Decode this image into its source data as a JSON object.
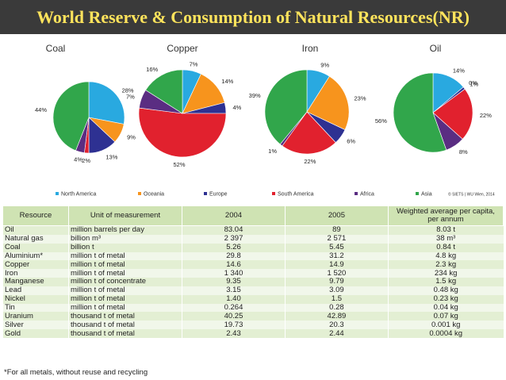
{
  "title": "World Reserve & Consumption of Natural Resources(NR)",
  "colors": {
    "North America": "#29a9e0",
    "Oceania": "#f7941d",
    "Europe": "#2e3192",
    "South America": "#e1212e",
    "Africa": "#5a2d82",
    "Asia": "#31a64b"
  },
  "legend": {
    "items": [
      "North America",
      "Oceania",
      "Europe",
      "South America",
      "Africa",
      "Asia"
    ],
    "source": "© SIETS | WU Wien, 2014"
  },
  "chart_data": [
    {
      "type": "pie",
      "title": "Coal",
      "labels": [
        "North America",
        "Oceania",
        "Europe",
        "South America",
        "Africa",
        "Asia"
      ],
      "values": [
        28,
        9,
        13,
        2,
        4,
        44
      ],
      "value_labels": [
        "28%",
        "9%",
        "13%",
        "2%",
        "4%",
        "44%"
      ]
    },
    {
      "type": "pie",
      "title": "Copper",
      "labels": [
        "North America",
        "Oceania",
        "Europe",
        "South America",
        "Africa",
        "Asia"
      ],
      "values": [
        7,
        14,
        4,
        52,
        7,
        16
      ],
      "value_labels": [
        "7%",
        "14%",
        "4%",
        "52%",
        "7%",
        "16%"
      ]
    },
    {
      "type": "pie",
      "title": "Iron",
      "labels": [
        "North America",
        "Oceania",
        "Europe",
        "South America",
        "Africa",
        "Asia"
      ],
      "values": [
        9,
        23,
        6,
        22,
        1,
        39
      ],
      "value_labels": [
        "9%",
        "23%",
        "6%",
        "22%",
        "1%",
        "39%"
      ]
    },
    {
      "type": "pie",
      "title": "Oil",
      "labels": [
        "North America",
        "Oceania",
        "Europe",
        "South America",
        "Africa",
        "Asia"
      ],
      "values": [
        14,
        0,
        1,
        22,
        8,
        56
      ],
      "value_labels": [
        "14%",
        "0%",
        "1%",
        "22%",
        "8%",
        "56%"
      ]
    }
  ],
  "table": {
    "headers": [
      "Resource",
      "Unit of measurement",
      "2004",
      "2005",
      "Weighted average per capita, per annum"
    ],
    "rows": [
      [
        "Oil",
        "million barrels per day",
        "83.04",
        "89",
        "8.03 t"
      ],
      [
        "Natural gas",
        "billion m³",
        "2 397",
        "2 571",
        "38 m³"
      ],
      [
        "Coal",
        "billion t",
        "5.26",
        "5.45",
        "0.84 t"
      ],
      [
        "Aluminium*",
        "million t of metal",
        "29.8",
        "31.2",
        "4.8 kg"
      ],
      [
        "Copper",
        "million t of metal",
        "14.6",
        "14.9",
        "2.3 kg"
      ],
      [
        "Iron",
        "million t of metal",
        "1 340",
        "1 520",
        "234 kg"
      ],
      [
        "Manganese",
        "million t of concentrate",
        "9.35",
        "9.79",
        "1.5 kg"
      ],
      [
        "Lead",
        "million t of metal",
        "3.15",
        "3.09",
        "0.48 kg"
      ],
      [
        "Nickel",
        "million t of metal",
        "1.40",
        "1.5",
        "0.23 kg"
      ],
      [
        "Tin",
        "million t of metal",
        "0.264",
        "0.28",
        "0.04 kg"
      ],
      [
        "Uranium",
        "thousand t of metal",
        "40.25",
        "42.89",
        "0.07 kg"
      ],
      [
        "Silver",
        "thousand t of metal",
        "19.73",
        "20.3",
        "0.001 kg"
      ],
      [
        "Gold",
        "thousand t of metal",
        "2.43",
        "2.44",
        "0.0004 kg"
      ]
    ]
  },
  "footnote": "*For all metals, without reuse and recycling"
}
